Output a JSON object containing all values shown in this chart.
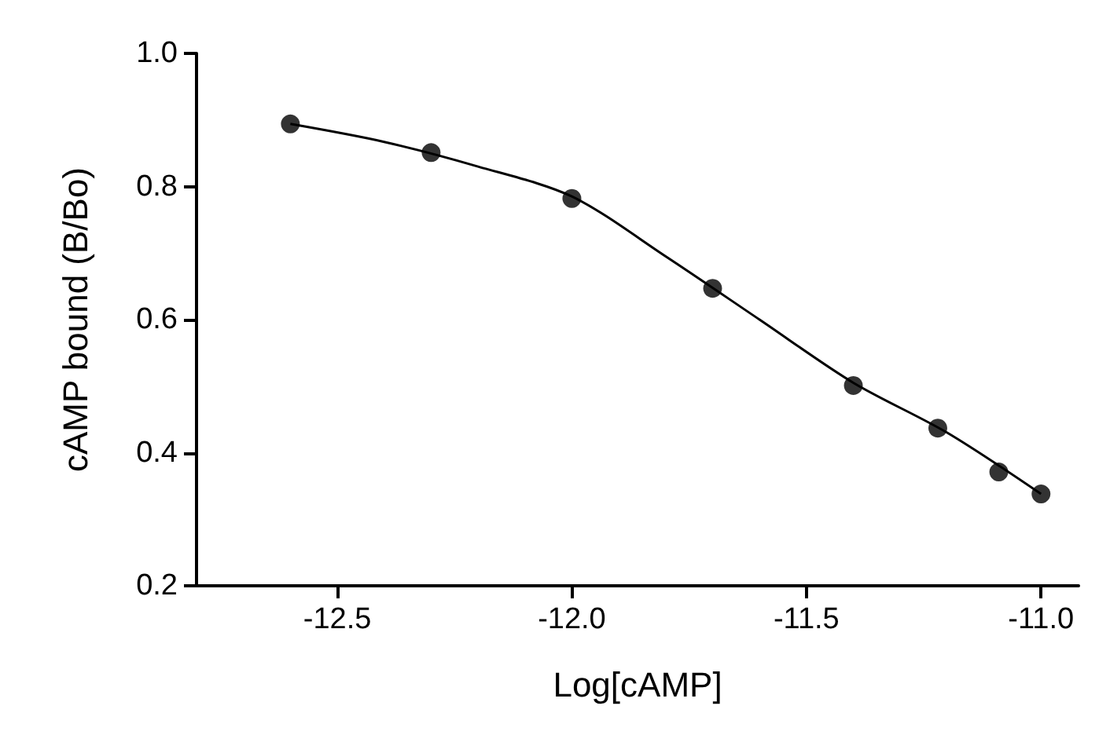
{
  "chart_data": {
    "type": "scatter",
    "xlabel": "Log[cAMP]",
    "ylabel": "cAMP bound (B/Bo)",
    "xlim": [
      -12.8,
      -10.92
    ],
    "ylim": [
      0.2,
      1.0
    ],
    "xticks": [
      -12.5,
      {
        "value": -12,
        "label": "-12.0"
      },
      -11.5,
      {
        "value": -11,
        "label": "-11.0"
      }
    ],
    "yticks": [
      0.2,
      0.4,
      0.6,
      0.8,
      {
        "value": 1,
        "label": "1.0"
      }
    ],
    "grid": false,
    "marker": "circle",
    "series": [
      {
        "color": "#000000",
        "x": [
          -12.6,
          -12.3,
          -12.0,
          -11.7,
          -11.4,
          -11.22,
          -11.09,
          -11.0
        ],
        "values": [
          0.894,
          0.851,
          0.782,
          0.647,
          0.501,
          0.437,
          0.371,
          0.338
        ]
      },
      {
        "type": "line",
        "color": "#000000",
        "marker": "none",
        "line_style": "solid",
        "x": [
          -12.6,
          -12.4,
          -12.2,
          -12.0,
          -11.8,
          -11.6,
          -11.4,
          -11.2,
          -11.0
        ],
        "values": [
          0.894,
          0.867,
          0.83,
          0.785,
          0.695,
          0.6,
          0.505,
          0.43,
          0.338
        ]
      }
    ]
  }
}
